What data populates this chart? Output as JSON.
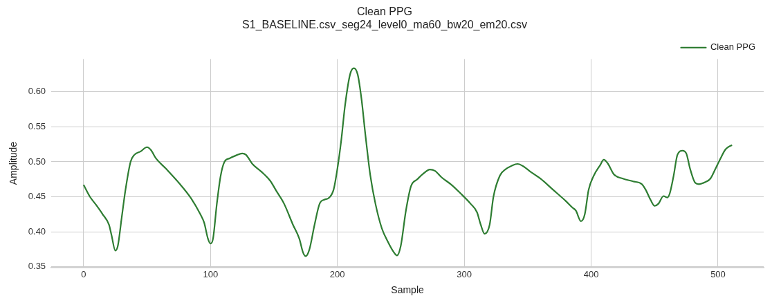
{
  "chart_data": {
    "type": "line",
    "title": "Clean PPG",
    "subtitle": "S1_BASELINE.csv_seg24_level0_ma60_bw20_em20.csv",
    "xlabel": "Sample",
    "ylabel": "Amplitude",
    "xlim": [
      -25.5,
      536
    ],
    "xticks": [
      0,
      100,
      200,
      300,
      400,
      500
    ],
    "ylim": [
      0.349,
      0.647
    ],
    "yticks": [
      0.35,
      {
        "value": 0.4,
        "label": "0.40"
      },
      0.45,
      {
        "value": 0.5,
        "label": "0.50"
      },
      0.55,
      {
        "value": 0.6,
        "label": "0.60"
      }
    ],
    "grid": true,
    "legend": "top right",
    "line_style": "solid",
    "marker": "none",
    "series": [
      {
        "name": "Clean PPG",
        "color": "#2e7d32",
        "x": [
          0,
          5,
          10,
          15,
          20,
          22,
          25,
          27,
          30,
          33,
          37,
          40,
          45,
          50,
          53,
          57,
          65,
          75,
          85,
          92,
          95,
          98,
          100,
          102,
          105,
          108,
          111,
          115,
          120,
          125,
          128,
          133,
          140,
          147,
          152,
          158,
          165,
          170,
          173,
          175,
          178,
          182,
          186,
          190,
          193,
          197,
          200,
          203,
          206,
          210,
          213,
          216,
          219,
          222,
          226,
          230,
          235,
          240,
          244,
          247,
          250,
          254,
          258,
          263,
          267,
          273,
          277,
          282,
          290,
          297,
          305,
          310,
          313,
          316,
          320,
          323,
          328,
          333,
          337,
          342,
          347,
          352,
          360,
          370,
          380,
          385,
          388,
          392,
          395,
          398,
          402,
          407,
          410,
          413,
          418,
          425,
          433,
          440,
          443,
          447,
          450,
          453,
          457,
          460,
          462,
          465,
          468,
          472,
          475,
          478,
          482,
          485,
          490,
          494,
          498,
          502,
          506,
          511
        ],
        "values": [
          0.467,
          0.45,
          0.438,
          0.425,
          0.41,
          0.395,
          0.373,
          0.38,
          0.42,
          0.46,
          0.5,
          0.51,
          0.515,
          0.521,
          0.517,
          0.505,
          0.49,
          0.47,
          0.447,
          0.425,
          0.413,
          0.39,
          0.383,
          0.39,
          0.44,
          0.48,
          0.5,
          0.505,
          0.509,
          0.512,
          0.51,
          0.497,
          0.486,
          0.473,
          0.458,
          0.44,
          0.41,
          0.39,
          0.37,
          0.365,
          0.375,
          0.41,
          0.44,
          0.446,
          0.448,
          0.46,
          0.49,
          0.53,
          0.58,
          0.625,
          0.634,
          0.625,
          0.59,
          0.54,
          0.48,
          0.44,
          0.405,
          0.385,
          0.372,
          0.366,
          0.38,
          0.43,
          0.465,
          0.475,
          0.482,
          0.489,
          0.487,
          0.478,
          0.467,
          0.455,
          0.44,
          0.428,
          0.41,
          0.397,
          0.41,
          0.45,
          0.48,
          0.49,
          0.494,
          0.497,
          0.493,
          0.486,
          0.476,
          0.46,
          0.444,
          0.435,
          0.43,
          0.415,
          0.425,
          0.46,
          0.48,
          0.495,
          0.503,
          0.498,
          0.482,
          0.476,
          0.472,
          0.468,
          0.46,
          0.445,
          0.437,
          0.44,
          0.451,
          0.449,
          0.455,
          0.48,
          0.51,
          0.516,
          0.512,
          0.49,
          0.47,
          0.468,
          0.471,
          0.476,
          0.49,
          0.505,
          0.518,
          0.524
        ]
      }
    ]
  }
}
